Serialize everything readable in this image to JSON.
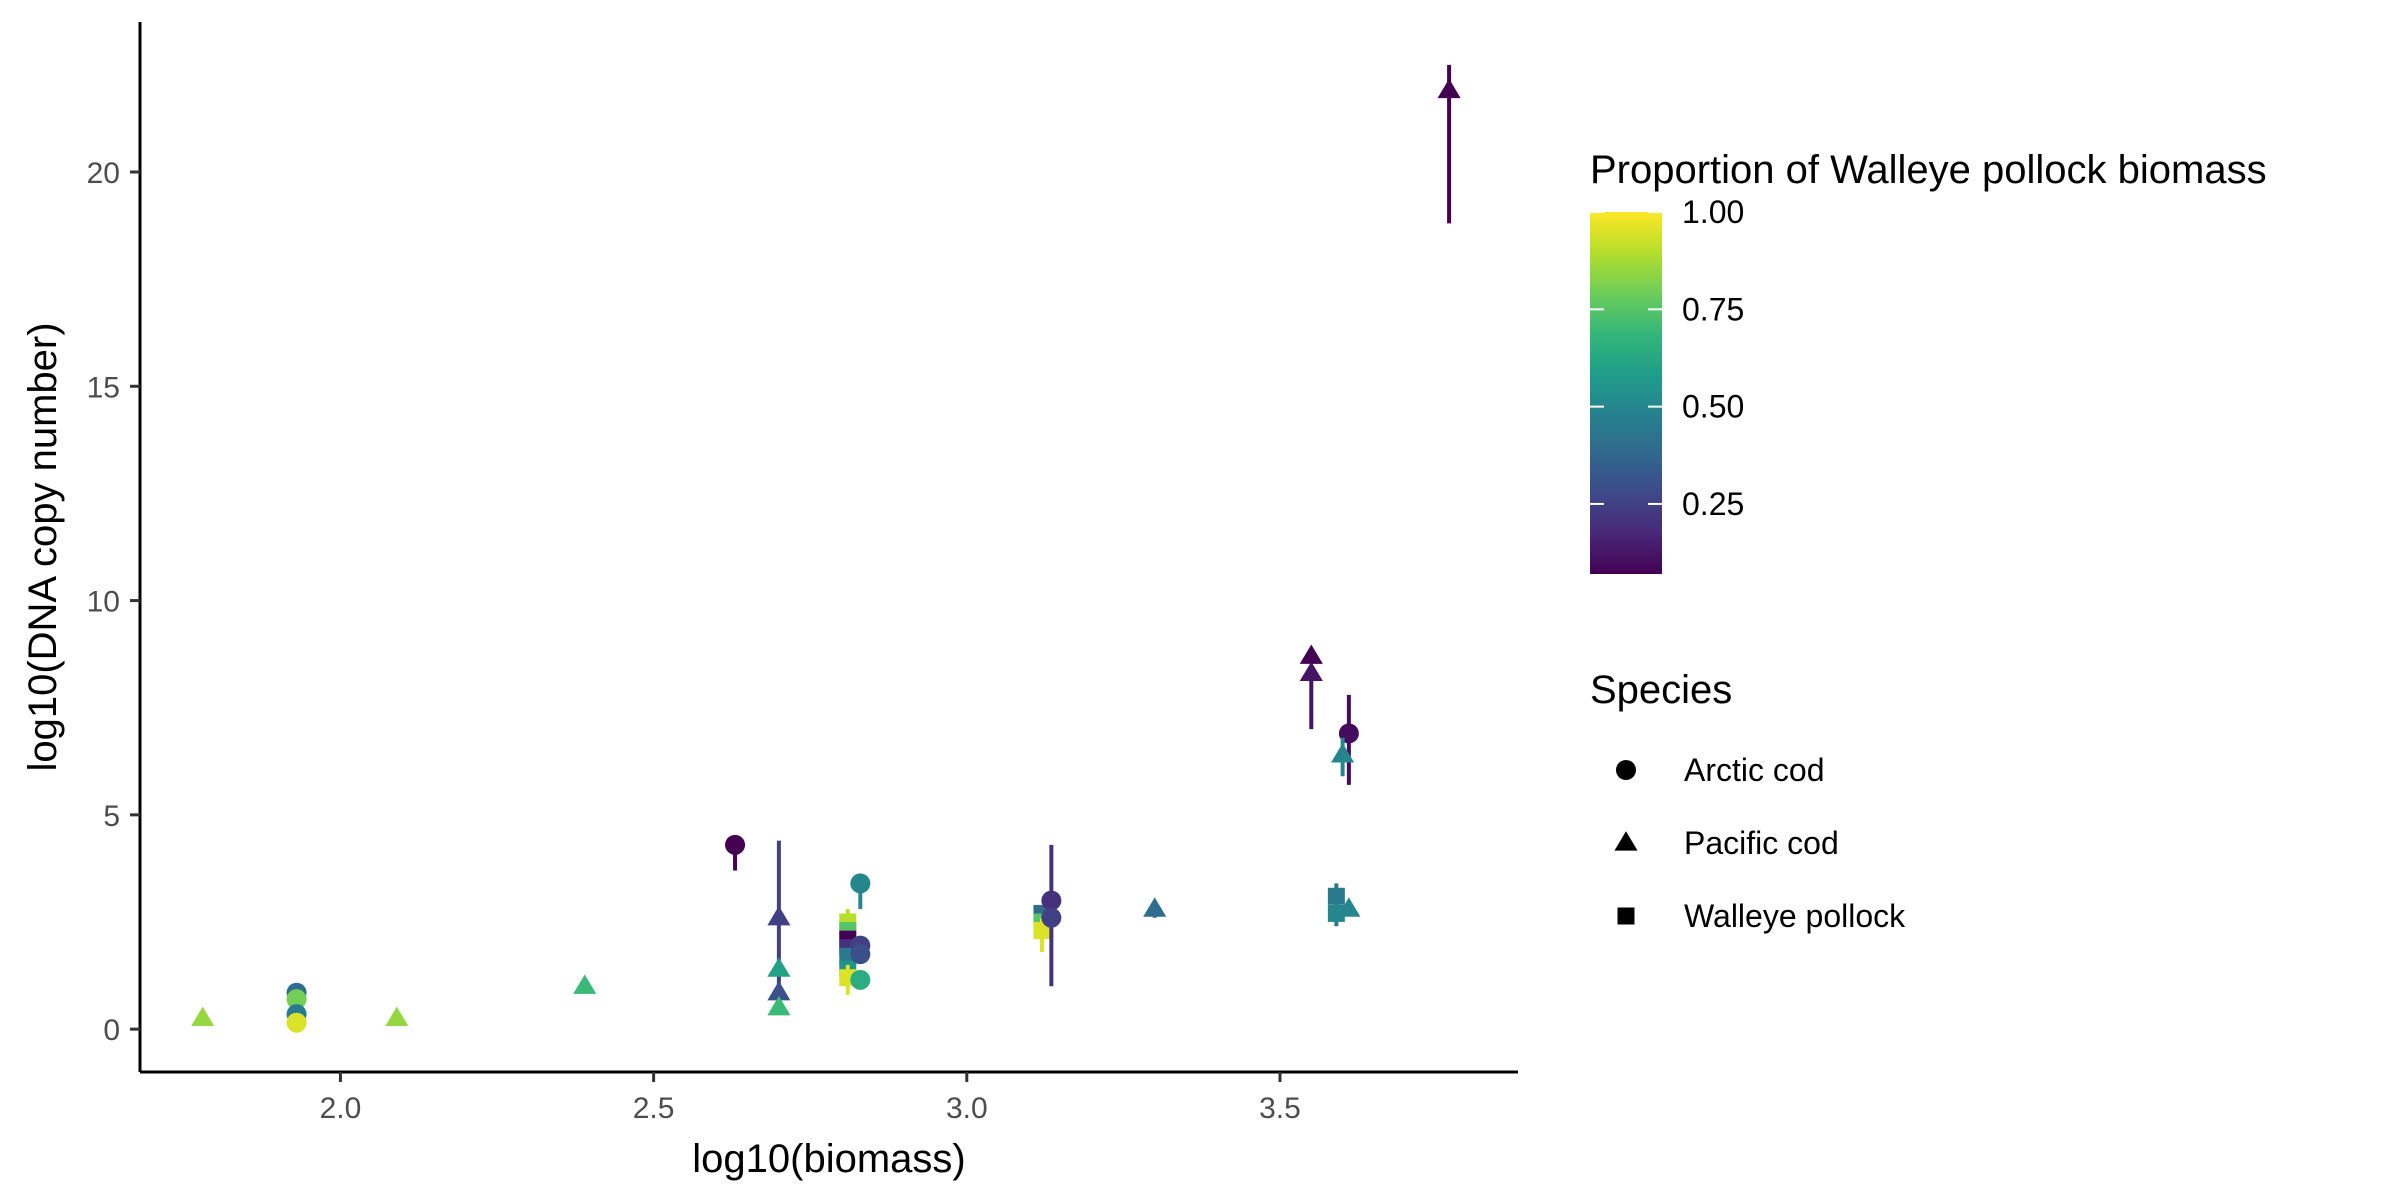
{
  "chart_data": {
    "type": "scatter",
    "xlabel": "log10(biomass)",
    "ylabel": "log10(DNA copy number)",
    "xlim": [
      1.68,
      3.88
    ],
    "ylim": [
      -1.0,
      23.5
    ],
    "x_ticks": [
      2.0,
      2.5,
      3.0,
      3.5
    ],
    "x_tick_labels": [
      "2.0",
      "2.5",
      "3.0",
      "3.5"
    ],
    "y_ticks": [
      0,
      5,
      10,
      15,
      20
    ],
    "y_tick_labels": [
      "0",
      "5",
      "10",
      "15",
      "20"
    ],
    "grid": false,
    "legend_position": "right",
    "color_legend": {
      "title": "Proportion of Walleye pollock biomass",
      "range": [
        0.07,
        1.0
      ],
      "ticks": [
        0.25,
        0.5,
        0.75,
        1.0
      ],
      "tick_labels": [
        "0.25",
        "0.50",
        "0.75",
        "1.00"
      ],
      "palette": [
        "#440154",
        "#482878",
        "#3e4989",
        "#31688e",
        "#26828e",
        "#1f9e89",
        "#35b779",
        "#6ece58",
        "#b5de2b",
        "#fde725"
      ]
    },
    "shape_legend": {
      "title": "Species",
      "entries": [
        {
          "label": "Arctic cod",
          "shape": "circle"
        },
        {
          "label": "Pacific cod",
          "shape": "triangle"
        },
        {
          "label": "Walleye pollock",
          "shape": "square"
        }
      ]
    },
    "points": [
      {
        "species": "Pacific cod",
        "x": 1.78,
        "y": 0.25,
        "p": 0.85
      },
      {
        "species": "Arctic cod",
        "x": 1.93,
        "y": 0.85,
        "p": 0.4
      },
      {
        "species": "Arctic cod",
        "x": 1.93,
        "y": 0.7,
        "p": 0.8
      },
      {
        "species": "Arctic cod",
        "x": 1.93,
        "y": 0.35,
        "p": 0.45
      },
      {
        "species": "Arctic cod",
        "x": 1.93,
        "y": 0.15,
        "p": 0.95
      },
      {
        "species": "Pacific cod",
        "x": 2.09,
        "y": 0.25,
        "p": 0.85
      },
      {
        "species": "Pacific cod",
        "x": 2.39,
        "y": 1.0,
        "p": 0.7
      },
      {
        "species": "Arctic cod",
        "x": 2.63,
        "y": 4.3,
        "p": 0.07,
        "ymin": 3.7,
        "ymax": 4.3
      },
      {
        "species": "Pacific cod",
        "x": 2.7,
        "y": 2.6,
        "p": 0.25,
        "ymin": 1.0,
        "ymax": 4.4
      },
      {
        "species": "Pacific cod",
        "x": 2.7,
        "y": 1.4,
        "p": 0.6
      },
      {
        "species": "Pacific cod",
        "x": 2.7,
        "y": 0.85,
        "p": 0.3
      },
      {
        "species": "Pacific cod",
        "x": 2.7,
        "y": 0.5,
        "p": 0.7
      },
      {
        "species": "Walleye pollock",
        "x": 2.81,
        "y": 2.5,
        "p": 0.9,
        "ymin": 2.3,
        "ymax": 2.8
      },
      {
        "species": "Walleye pollock",
        "x": 2.81,
        "y": 2.3,
        "p": 0.75
      },
      {
        "species": "Walleye pollock",
        "x": 2.81,
        "y": 2.1,
        "p": 0.07
      },
      {
        "species": "Walleye pollock",
        "x": 2.81,
        "y": 1.9,
        "p": 0.2
      },
      {
        "species": "Walleye pollock",
        "x": 2.81,
        "y": 1.7,
        "p": 0.45
      },
      {
        "species": "Walleye pollock",
        "x": 2.81,
        "y": 1.4,
        "p": 0.55
      },
      {
        "species": "Walleye pollock",
        "x": 2.81,
        "y": 1.2,
        "p": 0.95,
        "ymin": 0.8,
        "ymax": 1.5
      },
      {
        "species": "Arctic cod",
        "x": 2.83,
        "y": 3.4,
        "p": 0.5,
        "ymin": 2.8,
        "ymax": 3.4
      },
      {
        "species": "Arctic cod",
        "x": 2.83,
        "y": 1.95,
        "p": 0.25
      },
      {
        "species": "Arctic cod",
        "x": 2.83,
        "y": 1.75,
        "p": 0.3
      },
      {
        "species": "Arctic cod",
        "x": 2.83,
        "y": 1.15,
        "p": 0.65
      },
      {
        "species": "Walleye pollock",
        "x": 3.12,
        "y": 2.7,
        "p": 0.4
      },
      {
        "species": "Walleye pollock",
        "x": 3.12,
        "y": 2.5,
        "p": 0.75
      },
      {
        "species": "Walleye pollock",
        "x": 3.12,
        "y": 2.3,
        "p": 0.95,
        "ymin": 1.8,
        "ymax": 2.6
      },
      {
        "species": "Arctic cod",
        "x": 3.135,
        "y": 3.0,
        "p": 0.2,
        "ymin": 1.0,
        "ymax": 4.3
      },
      {
        "species": "Arctic cod",
        "x": 3.135,
        "y": 2.6,
        "p": 0.25
      },
      {
        "species": "Pacific cod",
        "x": 3.3,
        "y": 2.8,
        "p": 0.4,
        "ymin": 2.6,
        "ymax": 3.0
      },
      {
        "species": "Pacific cod",
        "x": 3.55,
        "y": 8.7,
        "p": 0.07
      },
      {
        "species": "Pacific cod",
        "x": 3.55,
        "y": 8.3,
        "p": 0.12,
        "ymin": 7.0,
        "ymax": 8.3
      },
      {
        "species": "Arctic cod",
        "x": 3.61,
        "y": 6.9,
        "p": 0.1,
        "ymin": 5.7,
        "ymax": 7.8
      },
      {
        "species": "Pacific cod",
        "x": 3.6,
        "y": 6.4,
        "p": 0.5,
        "ymin": 5.9,
        "ymax": 6.8
      },
      {
        "species": "Walleye pollock",
        "x": 3.59,
        "y": 3.1,
        "p": 0.45,
        "ymin": 2.4,
        "ymax": 3.4
      },
      {
        "species": "Walleye pollock",
        "x": 3.59,
        "y": 2.7,
        "p": 0.5
      },
      {
        "species": "Pacific cod",
        "x": 3.61,
        "y": 2.8,
        "p": 0.5
      },
      {
        "species": "Pacific cod",
        "x": 3.77,
        "y": 21.9,
        "p": 0.07,
        "ymin": 18.8,
        "ymax": 22.5
      }
    ]
  }
}
